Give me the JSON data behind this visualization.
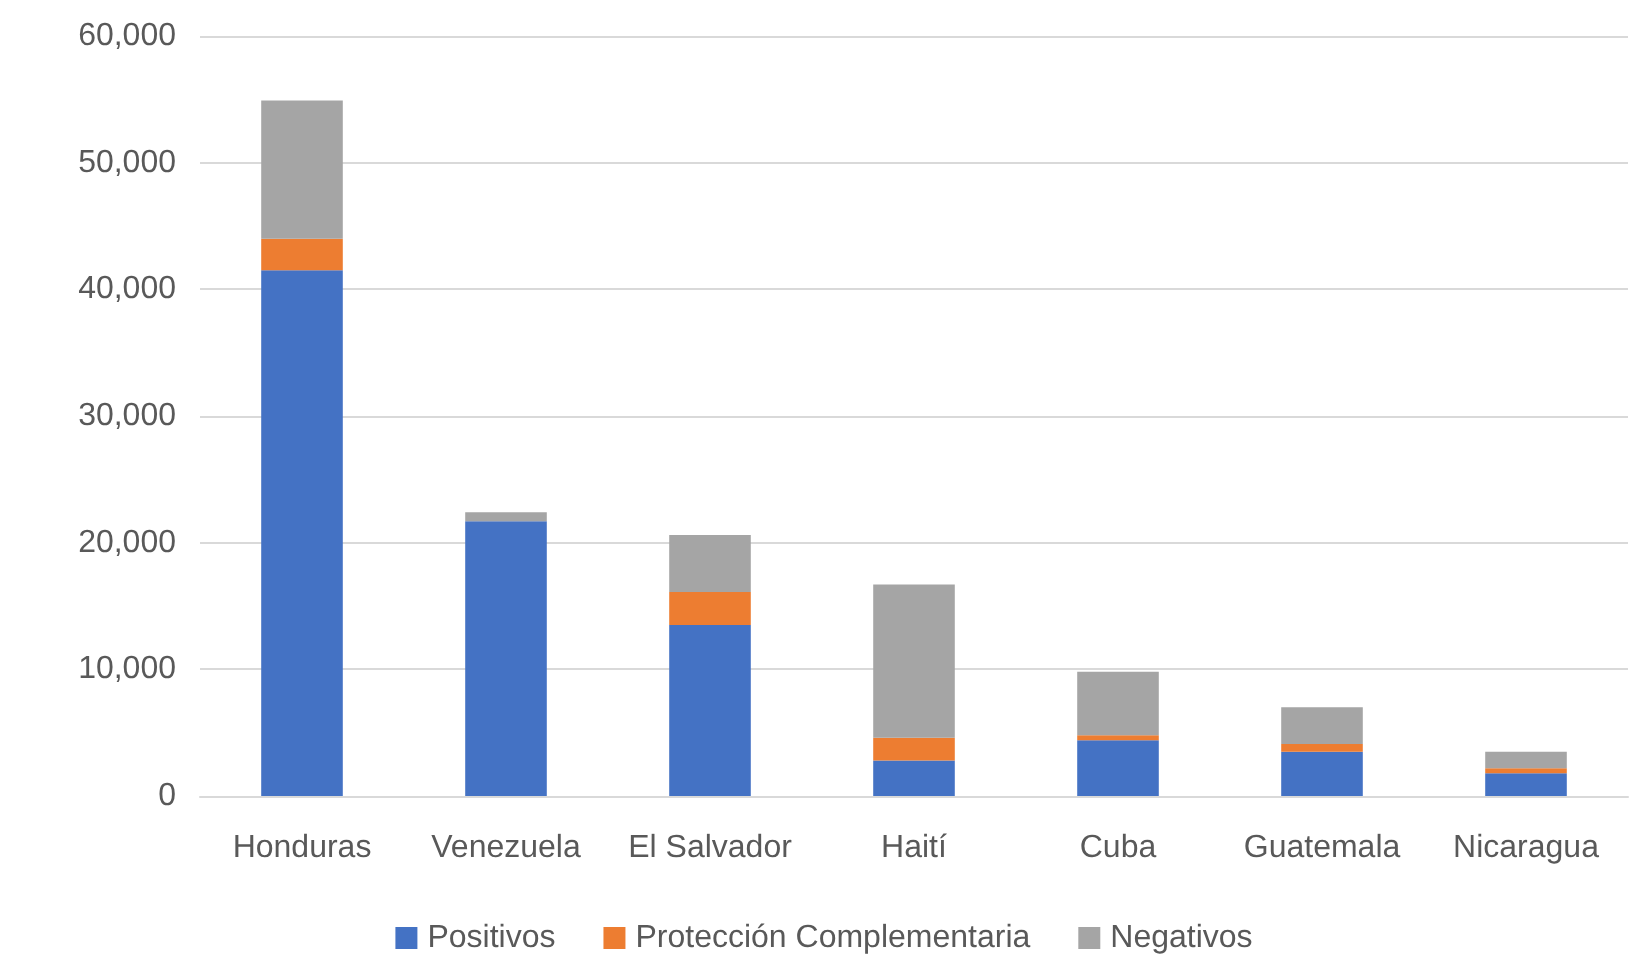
{
  "chart_data": {
    "type": "bar",
    "stacked": true,
    "categories": [
      "Honduras",
      "Venezuela",
      "El Salvador",
      "Haití",
      "Cuba",
      "Guatemala",
      "Nicaragua"
    ],
    "series": [
      {
        "name": "Positivos",
        "color": "#4472c4",
        "values": [
          41500,
          21700,
          13500,
          2800,
          4400,
          3500,
          1800
        ]
      },
      {
        "name": "Protección Complementaria",
        "color": "#ed7d31",
        "values": [
          2500,
          0,
          2600,
          1800,
          400,
          600,
          400
        ]
      },
      {
        "name": "Negativos",
        "color": "#a5a5a5",
        "values": [
          10900,
          700,
          4500,
          12100,
          5000,
          2900,
          1300
        ]
      }
    ],
    "ylim": [
      0,
      60000
    ],
    "yticks": [
      0,
      {
        "value": 10000,
        "label": "10,000"
      },
      {
        "value": 20000,
        "label": "20,000"
      },
      {
        "value": 30000,
        "label": "30,000"
      },
      {
        "value": 40000,
        "label": "40,000"
      },
      {
        "value": 50000,
        "label": "50,000"
      },
      {
        "value": 60000,
        "label": "60,000"
      }
    ],
    "grid": "y",
    "legend": "bottom"
  }
}
